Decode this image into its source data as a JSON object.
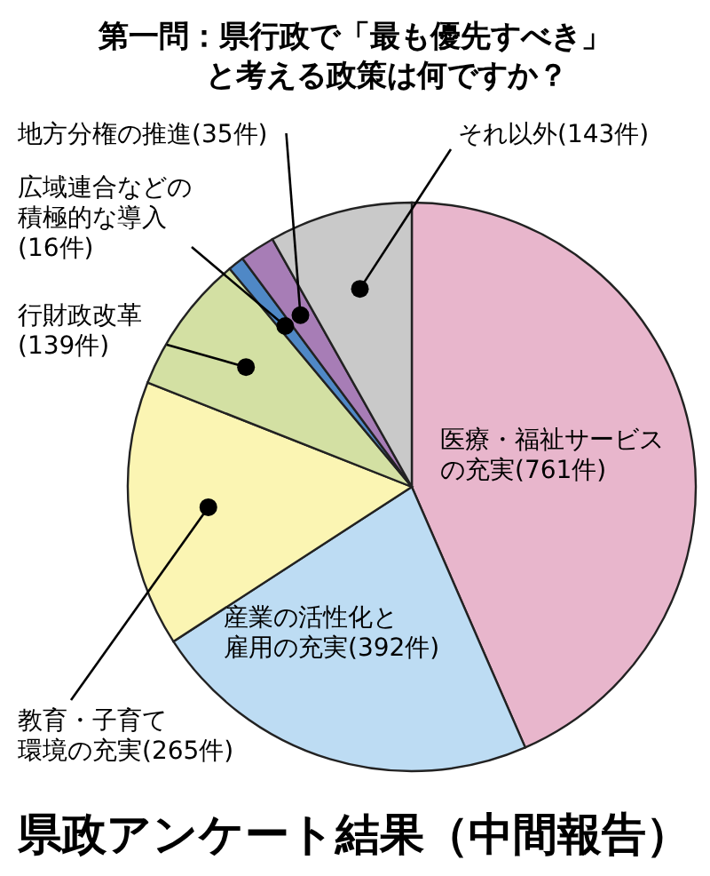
{
  "chart_data": {
    "type": "pie",
    "title": "第一問：県行政で「最も優先すべき」と考える政策は何ですか？",
    "subtitle": "県政アンケート結果（中間報告）",
    "categories": [
      "医療・福祉サービスの充実",
      "産業の活性化と雇用の充実",
      "教育・子育て環境の充実",
      "行財政改革",
      "広域連合などの積極的な導入",
      "地方分権の推進",
      "それ以外"
    ],
    "values": [
      761,
      392,
      265,
      139,
      16,
      35,
      143
    ],
    "value_labels": [
      "(761件)",
      "(392件)",
      "(265件)",
      "(139件)",
      "(16件)",
      "(35件)",
      "(143件)"
    ],
    "colors": [
      "#e8b6cc",
      "#bddcf3",
      "#fbf5b3",
      "#d3e0a3",
      "#4f88c6",
      "#a77db6",
      "#c9c9c9"
    ]
  }
}
